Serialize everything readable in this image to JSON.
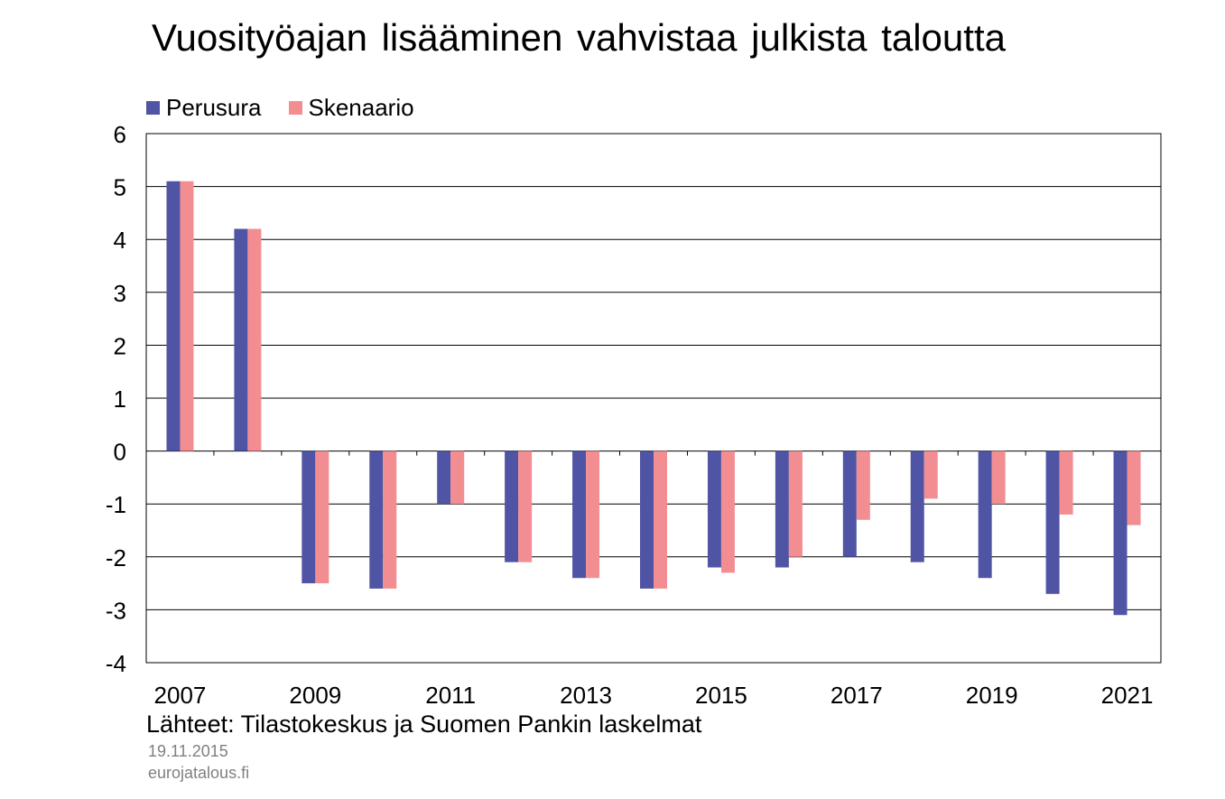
{
  "title": "Vuosityöajan lisääminen vahvistaa julkista taloutta",
  "source": "Lähteet: Tilastokeskus ja Suomen Pankin laskelmat",
  "date": "19.11.2015",
  "site": "eurojatalous.fi",
  "colors": {
    "perusura": "#5054A4",
    "skenaario": "#F28E92"
  },
  "chart_data": {
    "type": "bar",
    "title": "Vuosityöajan lisääminen vahvistaa julkista taloutta",
    "categories": [
      "2007",
      "2008",
      "2009",
      "2010",
      "2011",
      "2012",
      "2013",
      "2014",
      "2015",
      "2016",
      "2017",
      "2018",
      "2019",
      "2020",
      "2021"
    ],
    "x_tick_labels": [
      "2007",
      "2009",
      "2011",
      "2013",
      "2015",
      "2017",
      "2019",
      "2021"
    ],
    "series": [
      {
        "name": "Perusura",
        "values": [
          5.1,
          4.2,
          -2.5,
          -2.6,
          -1.0,
          -2.1,
          -2.4,
          -2.6,
          -2.2,
          -2.2,
          -2.0,
          -2.1,
          -2.4,
          -2.7,
          -3.1
        ]
      },
      {
        "name": "Skenaario",
        "values": [
          5.1,
          4.2,
          -2.5,
          -2.6,
          -1.0,
          -2.1,
          -2.4,
          -2.6,
          -2.3,
          -2.0,
          -1.3,
          -0.9,
          -1.0,
          -1.2,
          -1.4
        ]
      }
    ],
    "ylim": [
      -4,
      6
    ],
    "yticks": [
      6,
      5,
      4,
      3,
      2,
      1,
      0,
      -1,
      -2,
      -3,
      -4
    ],
    "grid": true,
    "legend_position": "top-left"
  }
}
